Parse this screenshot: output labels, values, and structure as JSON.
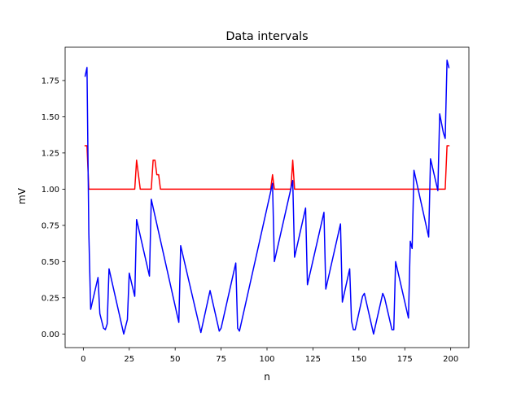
{
  "chart_data": {
    "type": "line",
    "title": "Data intervals",
    "xlabel": "n",
    "ylabel": "mV",
    "xlim": [
      -9.9,
      209.9
    ],
    "ylim": [
      -0.094,
      1.98
    ],
    "x_ticks": [
      0,
      25,
      50,
      75,
      100,
      125,
      150,
      175,
      200
    ],
    "y_ticks": [
      0.0,
      0.25,
      0.5,
      0.75,
      1.0,
      1.25,
      1.5,
      1.75
    ],
    "x_tick_labels": [
      "0",
      "25",
      "50",
      "75",
      "100",
      "125",
      "150",
      "175",
      "200"
    ],
    "y_tick_labels": [
      "0.00",
      "0.25",
      "0.50",
      "0.75",
      "1.00",
      "1.25",
      "1.50",
      "1.75"
    ],
    "grid": false,
    "legend": false,
    "series": [
      {
        "color": "#ff0000",
        "points": [
          [
            1,
            1.3
          ],
          [
            2,
            1.3
          ],
          [
            3,
            1.0
          ],
          [
            28,
            1.0
          ],
          [
            29,
            1.2
          ],
          [
            31,
            1.0
          ],
          [
            37,
            1.0
          ],
          [
            38,
            1.2
          ],
          [
            39,
            1.2
          ],
          [
            40,
            1.1
          ],
          [
            41,
            1.1
          ],
          [
            42,
            1.0
          ],
          [
            102,
            1.0
          ],
          [
            103,
            1.1
          ],
          [
            104,
            1.0
          ],
          [
            113,
            1.0
          ],
          [
            114,
            1.2
          ],
          [
            115,
            1.0
          ],
          [
            197,
            1.0
          ],
          [
            198,
            1.3
          ],
          [
            199,
            1.3
          ]
        ]
      },
      {
        "color": "#0000ff",
        "points": [
          [
            1,
            1.78
          ],
          [
            2,
            1.84
          ],
          [
            3,
            0.7
          ],
          [
            4,
            0.17
          ],
          [
            8,
            0.39
          ],
          [
            9,
            0.14
          ],
          [
            11,
            0.04
          ],
          [
            12,
            0.03
          ],
          [
            13,
            0.07
          ],
          [
            14,
            0.45
          ],
          [
            22,
            0.0
          ],
          [
            24,
            0.1
          ],
          [
            25,
            0.42
          ],
          [
            28,
            0.26
          ],
          [
            29,
            0.79
          ],
          [
            36,
            0.4
          ],
          [
            37,
            0.93
          ],
          [
            52,
            0.08
          ],
          [
            53,
            0.61
          ],
          [
            64,
            0.01
          ],
          [
            69,
            0.3
          ],
          [
            74,
            0.02
          ],
          [
            75,
            0.04
          ],
          [
            83,
            0.49
          ],
          [
            84,
            0.04
          ],
          [
            85,
            0.02
          ],
          [
            103,
            1.04
          ],
          [
            104,
            0.5
          ],
          [
            114,
            1.06
          ],
          [
            115,
            0.53
          ],
          [
            121,
            0.87
          ],
          [
            122,
            0.34
          ],
          [
            131,
            0.84
          ],
          [
            132,
            0.31
          ],
          [
            140,
            0.76
          ],
          [
            141,
            0.22
          ],
          [
            145,
            0.45
          ],
          [
            146,
            0.09
          ],
          [
            147,
            0.03
          ],
          [
            148,
            0.03
          ],
          [
            152,
            0.26
          ],
          [
            153,
            0.28
          ],
          [
            158,
            0.0
          ],
          [
            163,
            0.28
          ],
          [
            164,
            0.25
          ],
          [
            168,
            0.03
          ],
          [
            169,
            0.03
          ],
          [
            170,
            0.5
          ],
          [
            177,
            0.11
          ],
          [
            178,
            0.64
          ],
          [
            179,
            0.59
          ],
          [
            180,
            1.13
          ],
          [
            188,
            0.67
          ],
          [
            189,
            1.21
          ],
          [
            193,
            0.99
          ],
          [
            194,
            1.52
          ],
          [
            196,
            1.39
          ],
          [
            197,
            1.35
          ],
          [
            198,
            1.89
          ],
          [
            199,
            1.84
          ]
        ]
      }
    ]
  }
}
